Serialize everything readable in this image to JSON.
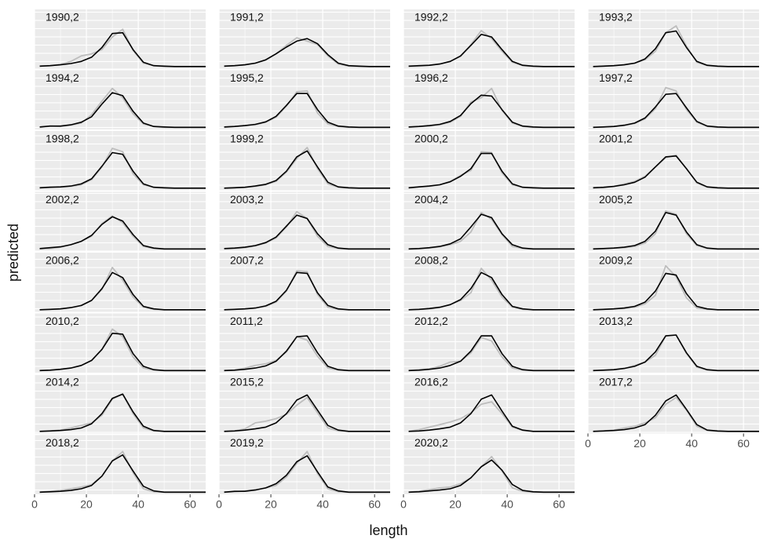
{
  "chart_data": {
    "type": "line",
    "x_label": "length",
    "y_label": "predicted",
    "x": [
      2,
      6,
      10,
      14,
      18,
      22,
      26,
      30,
      34,
      38,
      42,
      46,
      50,
      54,
      58,
      62,
      66
    ],
    "xlim": [
      0,
      66
    ],
    "xticks": [
      0,
      20,
      40,
      60
    ],
    "ylim": [
      -0.05,
      1.35
    ],
    "observed_color": "#bdbdbd",
    "predicted_color": "#000000",
    "panels": [
      {
        "label": "1990,2",
        "observed": [
          0.01,
          0.02,
          0.05,
          0.12,
          0.25,
          0.3,
          0.4,
          0.7,
          0.88,
          0.38,
          0.08,
          0.02,
          0,
          0,
          0,
          0,
          0
        ],
        "predicted": [
          0.01,
          0.02,
          0.04,
          0.07,
          0.12,
          0.22,
          0.45,
          0.78,
          0.8,
          0.4,
          0.1,
          0.02,
          0.01,
          0,
          0,
          0,
          0
        ]
      },
      {
        "label": "1991,2",
        "observed": [
          0.01,
          0.02,
          0.04,
          0.08,
          0.15,
          0.3,
          0.5,
          0.68,
          0.6,
          0.52,
          0.25,
          0.06,
          0.01,
          0,
          0,
          0,
          0
        ],
        "predicted": [
          0.01,
          0.02,
          0.04,
          0.08,
          0.16,
          0.3,
          0.46,
          0.6,
          0.66,
          0.54,
          0.28,
          0.08,
          0.02,
          0.01,
          0,
          0,
          0
        ]
      },
      {
        "label": "1992,2",
        "observed": [
          0,
          0.01,
          0.03,
          0.06,
          0.12,
          0.24,
          0.52,
          0.85,
          0.66,
          0.36,
          0.1,
          0.02,
          0,
          0,
          0,
          0,
          0
        ],
        "predicted": [
          0.01,
          0.02,
          0.03,
          0.06,
          0.12,
          0.25,
          0.5,
          0.76,
          0.7,
          0.4,
          0.12,
          0.03,
          0.01,
          0,
          0,
          0,
          0
        ]
      },
      {
        "label": "1993,2",
        "observed": [
          0,
          0.01,
          0.02,
          0.04,
          0.08,
          0.16,
          0.36,
          0.8,
          0.96,
          0.48,
          0.1,
          0.02,
          0,
          0,
          0,
          0,
          0
        ],
        "predicted": [
          0,
          0.01,
          0.02,
          0.04,
          0.08,
          0.18,
          0.42,
          0.8,
          0.84,
          0.45,
          0.12,
          0.03,
          0.01,
          0,
          0,
          0,
          0
        ]
      },
      {
        "label": "1994,2",
        "observed": [
          0,
          0.03,
          0.02,
          0.05,
          0.1,
          0.3,
          0.62,
          0.92,
          0.7,
          0.32,
          0.08,
          0.02,
          0,
          0,
          0,
          0,
          0
        ],
        "predicted": [
          0.01,
          0.03,
          0.03,
          0.06,
          0.12,
          0.25,
          0.55,
          0.82,
          0.75,
          0.38,
          0.1,
          0.02,
          0.01,
          0,
          0,
          0,
          0
        ]
      },
      {
        "label": "1995,2",
        "observed": [
          0,
          0.02,
          0.04,
          0.06,
          0.12,
          0.24,
          0.5,
          0.84,
          0.86,
          0.34,
          0.08,
          0.02,
          0,
          0,
          0,
          0,
          0
        ],
        "predicted": [
          0.01,
          0.02,
          0.04,
          0.07,
          0.13,
          0.26,
          0.52,
          0.8,
          0.8,
          0.42,
          0.12,
          0.03,
          0.01,
          0,
          0,
          0,
          0
        ]
      },
      {
        "label": "1996,2",
        "observed": [
          0,
          0.02,
          0.03,
          0.06,
          0.12,
          0.26,
          0.6,
          0.7,
          0.92,
          0.4,
          0.1,
          0.02,
          0,
          0,
          0,
          0,
          0
        ],
        "predicted": [
          0.01,
          0.02,
          0.04,
          0.07,
          0.14,
          0.28,
          0.56,
          0.76,
          0.74,
          0.42,
          0.12,
          0.03,
          0.01,
          0,
          0,
          0,
          0
        ]
      },
      {
        "label": "1997,2",
        "observed": [
          0,
          0.01,
          0.02,
          0.04,
          0.09,
          0.2,
          0.44,
          0.94,
          0.86,
          0.42,
          0.12,
          0.02,
          0,
          0,
          0,
          0,
          0
        ],
        "predicted": [
          0,
          0.01,
          0.02,
          0.05,
          0.1,
          0.22,
          0.48,
          0.78,
          0.8,
          0.46,
          0.14,
          0.03,
          0.01,
          0,
          0,
          0,
          0
        ]
      },
      {
        "label": "1998,2",
        "observed": [
          0,
          0.03,
          0.02,
          0.04,
          0.08,
          0.2,
          0.5,
          0.94,
          0.86,
          0.34,
          0.08,
          0.02,
          0,
          0,
          0,
          0,
          0
        ],
        "predicted": [
          0.01,
          0.02,
          0.03,
          0.05,
          0.1,
          0.22,
          0.52,
          0.84,
          0.8,
          0.4,
          0.1,
          0.02,
          0.01,
          0,
          0,
          0,
          0
        ]
      },
      {
        "label": "1999,2",
        "observed": [
          0,
          0.01,
          0.02,
          0.04,
          0.08,
          0.16,
          0.38,
          0.7,
          0.96,
          0.46,
          0.1,
          0.02,
          0,
          0,
          0,
          0,
          0
        ],
        "predicted": [
          0,
          0.01,
          0.02,
          0.05,
          0.09,
          0.18,
          0.4,
          0.74,
          0.88,
          0.5,
          0.14,
          0.03,
          0.01,
          0,
          0,
          0,
          0
        ]
      },
      {
        "label": "2000,2",
        "observed": [
          0,
          0.03,
          0.04,
          0.08,
          0.16,
          0.3,
          0.42,
          0.86,
          0.84,
          0.36,
          0.08,
          0.02,
          0,
          0,
          0,
          0,
          0
        ],
        "predicted": [
          0.01,
          0.03,
          0.05,
          0.08,
          0.15,
          0.28,
          0.46,
          0.82,
          0.82,
          0.4,
          0.1,
          0.02,
          0.01,
          0,
          0,
          0,
          0
        ]
      },
      {
        "label": "2001,2",
        "observed": [
          0,
          0.01,
          0.04,
          0.1,
          0.16,
          0.28,
          0.5,
          0.72,
          0.78,
          0.46,
          0.12,
          0.02,
          0,
          0,
          0,
          0,
          0
        ],
        "predicted": [
          0.01,
          0.02,
          0.04,
          0.08,
          0.14,
          0.26,
          0.5,
          0.74,
          0.76,
          0.46,
          0.14,
          0.03,
          0.01,
          0,
          0,
          0,
          0
        ]
      },
      {
        "label": "2002,2",
        "observed": [
          0,
          0.01,
          0.04,
          0.1,
          0.18,
          0.3,
          0.6,
          0.78,
          0.62,
          0.3,
          0.06,
          0.01,
          0,
          0,
          0,
          0,
          0
        ],
        "predicted": [
          0.01,
          0.03,
          0.05,
          0.1,
          0.18,
          0.32,
          0.58,
          0.76,
          0.66,
          0.34,
          0.08,
          0.02,
          0,
          0,
          0,
          0,
          0
        ]
      },
      {
        "label": "2003,2",
        "observed": [
          0,
          0.01,
          0.03,
          0.07,
          0.14,
          0.26,
          0.52,
          0.88,
          0.72,
          0.3,
          0.06,
          0.01,
          0,
          0,
          0,
          0,
          0
        ],
        "predicted": [
          0.01,
          0.02,
          0.04,
          0.08,
          0.15,
          0.28,
          0.54,
          0.8,
          0.72,
          0.36,
          0.1,
          0.02,
          0,
          0,
          0,
          0,
          0
        ]
      },
      {
        "label": "2004,2",
        "observed": [
          0,
          0.01,
          0.02,
          0.05,
          0.1,
          0.18,
          0.4,
          0.86,
          0.7,
          0.34,
          0.06,
          0.01,
          0,
          0,
          0,
          0,
          0
        ],
        "predicted": [
          0,
          0.01,
          0.03,
          0.06,
          0.12,
          0.24,
          0.52,
          0.82,
          0.74,
          0.36,
          0.1,
          0.02,
          0,
          0,
          0,
          0,
          0
        ]
      },
      {
        "label": "2005,2",
        "observed": [
          0,
          0.01,
          0.02,
          0.03,
          0.06,
          0.14,
          0.36,
          0.9,
          0.82,
          0.36,
          0.08,
          0.01,
          0,
          0,
          0,
          0,
          0
        ],
        "predicted": [
          0,
          0.01,
          0.02,
          0.04,
          0.08,
          0.18,
          0.42,
          0.86,
          0.8,
          0.4,
          0.1,
          0.02,
          0,
          0,
          0,
          0,
          0
        ]
      },
      {
        "label": "2006,2",
        "observed": [
          0,
          0.01,
          0.02,
          0.05,
          0.1,
          0.22,
          0.48,
          1.0,
          0.7,
          0.3,
          0.06,
          0.01,
          0,
          0,
          0,
          0,
          0
        ],
        "predicted": [
          0,
          0.01,
          0.02,
          0.05,
          0.1,
          0.22,
          0.5,
          0.88,
          0.76,
          0.36,
          0.08,
          0.02,
          0,
          0,
          0,
          0,
          0
        ]
      },
      {
        "label": "2007,2",
        "observed": [
          0,
          0.01,
          0.02,
          0.04,
          0.08,
          0.18,
          0.44,
          0.92,
          0.9,
          0.36,
          0.06,
          0.01,
          0,
          0,
          0,
          0,
          0
        ],
        "predicted": [
          0,
          0.01,
          0.02,
          0.04,
          0.09,
          0.2,
          0.46,
          0.88,
          0.86,
          0.4,
          0.1,
          0.02,
          0,
          0,
          0,
          0,
          0
        ]
      },
      {
        "label": "2008,2",
        "observed": [
          0,
          0.01,
          0.02,
          0.05,
          0.12,
          0.22,
          0.4,
          0.98,
          0.7,
          0.3,
          0.06,
          0.01,
          0,
          0,
          0,
          0,
          0
        ],
        "predicted": [
          0,
          0.01,
          0.03,
          0.06,
          0.12,
          0.24,
          0.5,
          0.88,
          0.76,
          0.36,
          0.08,
          0.02,
          0,
          0,
          0,
          0,
          0
        ]
      },
      {
        "label": "2009,2",
        "observed": [
          0,
          0.01,
          0.02,
          0.03,
          0.06,
          0.14,
          0.34,
          1.04,
          0.78,
          0.28,
          0.04,
          0.01,
          0,
          0,
          0,
          0,
          0
        ],
        "predicted": [
          0,
          0.01,
          0.02,
          0.04,
          0.08,
          0.18,
          0.44,
          0.86,
          0.82,
          0.38,
          0.08,
          0.02,
          0,
          0,
          0,
          0,
          0
        ]
      },
      {
        "label": "2010,2",
        "observed": [
          0,
          0.01,
          0.03,
          0.06,
          0.12,
          0.24,
          0.5,
          0.98,
          0.8,
          0.32,
          0.06,
          0.01,
          0,
          0,
          0,
          0,
          0
        ],
        "predicted": [
          0,
          0.01,
          0.03,
          0.06,
          0.12,
          0.24,
          0.5,
          0.88,
          0.86,
          0.4,
          0.1,
          0.02,
          0,
          0,
          0,
          0,
          0
        ]
      },
      {
        "label": "2011,2",
        "observed": [
          0,
          0.01,
          0.06,
          0.12,
          0.16,
          0.24,
          0.44,
          0.8,
          0.72,
          0.34,
          0.06,
          0.01,
          0,
          0,
          0,
          0,
          0
        ],
        "predicted": [
          0,
          0.01,
          0.03,
          0.06,
          0.11,
          0.22,
          0.46,
          0.8,
          0.82,
          0.42,
          0.1,
          0.02,
          0,
          0,
          0,
          0,
          0
        ]
      },
      {
        "label": "2012,2",
        "observed": [
          0,
          0.02,
          0.04,
          0.1,
          0.2,
          0.22,
          0.42,
          0.78,
          0.7,
          0.32,
          0.06,
          0.01,
          0,
          0,
          0,
          0,
          0
        ],
        "predicted": [
          0,
          0.01,
          0.03,
          0.06,
          0.12,
          0.22,
          0.46,
          0.82,
          0.82,
          0.4,
          0.1,
          0.02,
          0,
          0,
          0,
          0,
          0
        ]
      },
      {
        "label": "2013,2",
        "observed": [
          0,
          0.01,
          0.02,
          0.05,
          0.12,
          0.2,
          0.36,
          0.82,
          0.84,
          0.4,
          0.08,
          0.01,
          0,
          0,
          0,
          0,
          0
        ],
        "predicted": [
          0,
          0.01,
          0.02,
          0.05,
          0.1,
          0.2,
          0.44,
          0.82,
          0.84,
          0.42,
          0.1,
          0.02,
          0,
          0,
          0,
          0,
          0
        ]
      },
      {
        "label": "2014,2",
        "observed": [
          0,
          0.01,
          0.03,
          0.08,
          0.14,
          0.2,
          0.38,
          0.76,
          0.88,
          0.42,
          0.08,
          0.01,
          0,
          0,
          0,
          0,
          0
        ],
        "predicted": [
          0,
          0.01,
          0.02,
          0.04,
          0.08,
          0.18,
          0.42,
          0.78,
          0.88,
          0.46,
          0.12,
          0.02,
          0,
          0,
          0,
          0,
          0
        ]
      },
      {
        "label": "2015,2",
        "observed": [
          0,
          0.01,
          0.06,
          0.2,
          0.24,
          0.3,
          0.4,
          0.62,
          0.8,
          0.44,
          0.08,
          0.01,
          0,
          0,
          0,
          0,
          0
        ],
        "predicted": [
          0,
          0.01,
          0.03,
          0.06,
          0.1,
          0.2,
          0.42,
          0.74,
          0.86,
          0.5,
          0.14,
          0.03,
          0,
          0,
          0,
          0,
          0
        ]
      },
      {
        "label": "2016,2",
        "observed": [
          0,
          0.04,
          0.1,
          0.16,
          0.22,
          0.3,
          0.44,
          0.64,
          0.7,
          0.42,
          0.1,
          0.02,
          0,
          0,
          0,
          0,
          0
        ],
        "predicted": [
          0,
          0.01,
          0.03,
          0.06,
          0.1,
          0.2,
          0.42,
          0.76,
          0.86,
          0.48,
          0.12,
          0.03,
          0,
          0,
          0,
          0,
          0
        ]
      },
      {
        "label": "2017,2",
        "observed": [
          0,
          0.01,
          0.03,
          0.08,
          0.12,
          0.2,
          0.32,
          0.64,
          0.8,
          0.5,
          0.12,
          0.02,
          0,
          0,
          0,
          0,
          0
        ],
        "predicted": [
          0,
          0.01,
          0.02,
          0.04,
          0.08,
          0.16,
          0.38,
          0.72,
          0.86,
          0.52,
          0.16,
          0.03,
          0.01,
          0,
          0,
          0,
          0
        ]
      },
      {
        "label": "2018,2",
        "observed": [
          0,
          0.02,
          0.04,
          0.08,
          0.12,
          0.18,
          0.38,
          0.74,
          0.96,
          0.46,
          0.08,
          0.01,
          0,
          0,
          0,
          0,
          0
        ],
        "predicted": [
          0,
          0.01,
          0.02,
          0.04,
          0.08,
          0.16,
          0.38,
          0.74,
          0.88,
          0.5,
          0.14,
          0.03,
          0,
          0,
          0,
          0,
          0
        ]
      },
      {
        "label": "2019,2",
        "observed": [
          0,
          0.01,
          0.03,
          0.06,
          0.1,
          0.16,
          0.36,
          0.68,
          0.96,
          0.44,
          0.08,
          0.01,
          0,
          0,
          0,
          0,
          0
        ],
        "predicted": [
          0,
          0.02,
          0.02,
          0.05,
          0.1,
          0.2,
          0.4,
          0.72,
          0.86,
          0.48,
          0.12,
          0.03,
          0,
          0,
          0,
          0,
          0
        ]
      },
      {
        "label": "2020,2",
        "observed": [
          0,
          0.02,
          0.06,
          0.1,
          0.12,
          0.2,
          0.34,
          0.6,
          0.84,
          0.5,
          0.1,
          0.02,
          0,
          0,
          0,
          0,
          0
        ],
        "predicted": [
          0,
          0.01,
          0.03,
          0.05,
          0.08,
          0.16,
          0.34,
          0.6,
          0.76,
          0.52,
          0.18,
          0.04,
          0.01,
          0,
          0,
          0,
          0
        ]
      }
    ]
  }
}
